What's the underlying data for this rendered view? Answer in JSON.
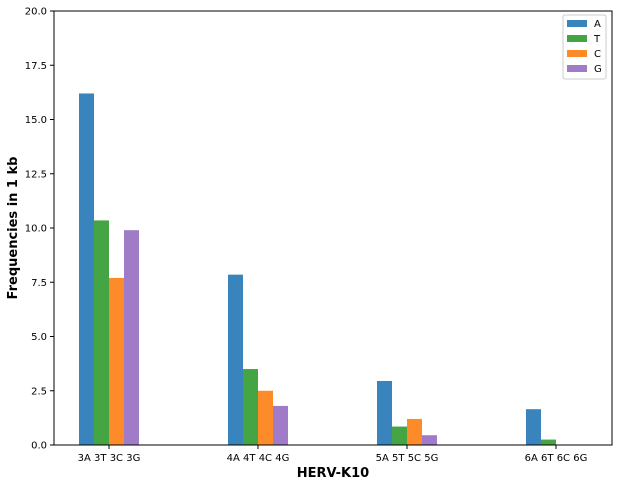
{
  "chart_data": {
    "type": "bar",
    "title": "",
    "xlabel": "HERV-K10",
    "ylabel": "Frequencies in 1 kb",
    "categories": [
      "3A 3T 3C 3G",
      "4A 4T 4C 4G",
      "5A 5T 5C 5G",
      "6A 6T 6C 6G"
    ],
    "series": [
      {
        "name": "A",
        "color": "#3a84bd",
        "values": [
          16.2,
          7.85,
          2.95,
          1.65
        ]
      },
      {
        "name": "T",
        "color": "#45a544",
        "values": [
          10.35,
          3.5,
          0.85,
          0.25
        ]
      },
      {
        "name": "C",
        "color": "#fd8b2a",
        "values": [
          7.7,
          2.5,
          1.2,
          0.0
        ]
      },
      {
        "name": "G",
        "color": "#a07cc8",
        "values": [
          9.9,
          1.8,
          0.45,
          0.0
        ]
      }
    ],
    "ylim": [
      0,
      20
    ],
    "yticks": [
      "0.0",
      "2.5",
      "5.0",
      "7.5",
      "10.0",
      "12.5",
      "15.0",
      "17.5",
      "20.0"
    ],
    "grid": false,
    "legend_position": "top-right"
  }
}
